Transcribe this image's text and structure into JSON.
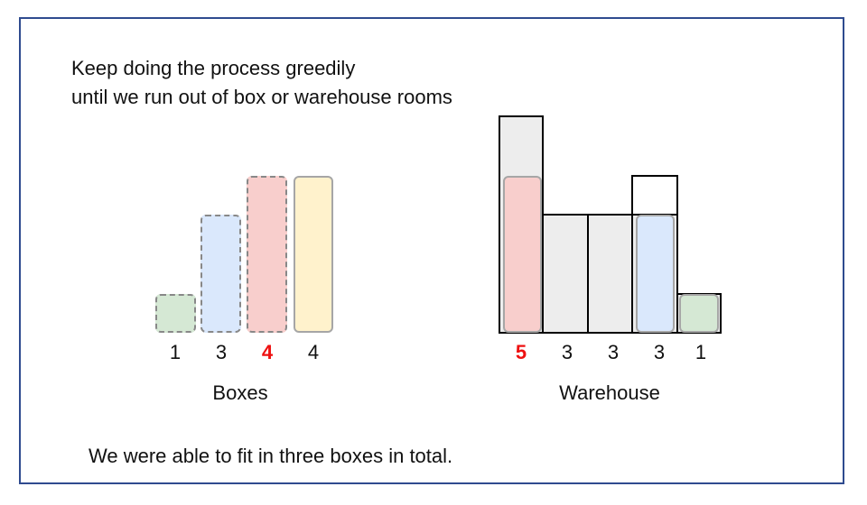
{
  "heading": {
    "line1": "Keep doing the process greedily",
    "line2": "until we run out of box or warehouse rooms"
  },
  "boxes": {
    "caption": "Boxes",
    "items": [
      {
        "label": "1",
        "color": "#d5e8d4",
        "style": "dashed",
        "highlight": false
      },
      {
        "label": "3",
        "color": "#dae8fc",
        "style": "dashed",
        "highlight": false
      },
      {
        "label": "4",
        "color": "#f8cecc",
        "style": "dashed",
        "highlight": true
      },
      {
        "label": "4",
        "color": "#fff2cc",
        "style": "solid",
        "highlight": false
      }
    ]
  },
  "warehouse": {
    "caption": "Warehouse",
    "rooms": [
      {
        "label": "5",
        "highlight": true
      },
      {
        "label": "3",
        "highlight": false
      },
      {
        "label": "3",
        "highlight": false
      },
      {
        "label": "3",
        "highlight": false
      },
      {
        "label": "1",
        "highlight": false
      }
    ],
    "placed_colors": {
      "pink": "#f8cecc",
      "blue": "#dae8fc",
      "green": "#d5e8d4"
    }
  },
  "footer": "We were able to fit in three boxes in total.",
  "colors": {
    "frame": "#2f4b8f",
    "highlight": "#ee1111",
    "room_fill": "#ededed"
  }
}
